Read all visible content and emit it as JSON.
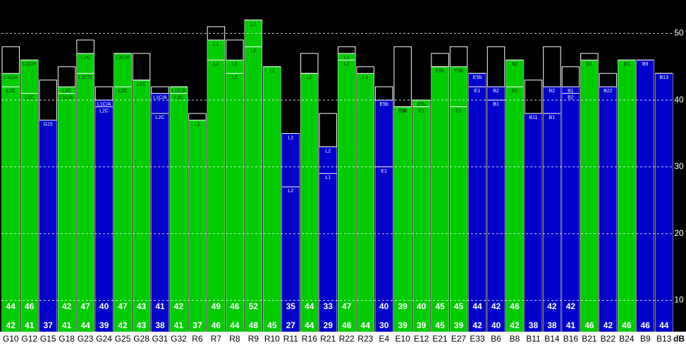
{
  "chart_data": {
    "type": "bar",
    "y_label": "dB",
    "ylim": [
      5.3,
      55
    ],
    "yticks": [
      10,
      20,
      30,
      40,
      50
    ],
    "grid": true,
    "categories": [
      "G10",
      "G12",
      "G15",
      "G18",
      "G23",
      "G24",
      "G25",
      "G28",
      "G31",
      "G32",
      "R6",
      "R7",
      "R8",
      "R9",
      "R10",
      "R11",
      "R16",
      "R21",
      "R22",
      "R23",
      "E4",
      "E10",
      "E12",
      "E21",
      "E27",
      "E33",
      "B6",
      "B8",
      "B11",
      "B14",
      "B16",
      "B21",
      "B22",
      "B24",
      "B9",
      "B13"
    ],
    "bars": [
      {
        "color": "#00cc00",
        "peak": 48,
        "signals": [
          {
            "label": "L1C/A",
            "value": 44
          },
          {
            "label": "L2C",
            "value": 42
          }
        ]
      },
      {
        "color": "#00cc00",
        "peak": 46,
        "signals": [
          {
            "label": "L1C/A",
            "value": 46
          },
          {
            "label": "L2C",
            "value": 41
          }
        ]
      },
      {
        "color": "#0000cc",
        "peak": 43,
        "signals": [
          {
            "label": "G15",
            "value": 37
          }
        ]
      },
      {
        "color": "#00cc00",
        "peak": 45,
        "signals": [
          {
            "label": "L2C",
            "value": 42
          },
          {
            "label": "L1C/A",
            "value": 41
          }
        ]
      },
      {
        "color": "#00cc00",
        "peak": 49,
        "signals": [
          {
            "label": "L2C",
            "value": 47
          },
          {
            "label": "L1C/A",
            "value": 44
          }
        ]
      },
      {
        "color": "#0000cc",
        "peak": 42,
        "signals": [
          {
            "label": "L1C/A",
            "value": 40
          },
          {
            "label": "L2C",
            "value": 39
          }
        ]
      },
      {
        "color": "#00cc00",
        "peak": 47,
        "signals": [
          {
            "label": "L1C/A",
            "value": 47
          },
          {
            "label": "L2C",
            "value": 42
          }
        ]
      },
      {
        "color": "#00cc00",
        "peak": 47,
        "signals": [
          {
            "label": "L2C",
            "value": 43
          },
          {
            "value": 43
          }
        ]
      },
      {
        "color": "#0000cc",
        "peak": 42,
        "signals": [
          {
            "label": "L1C/A",
            "value": 41
          },
          {
            "label": "L2C",
            "value": 38
          }
        ]
      },
      {
        "color": "#00cc00",
        "peak": 42,
        "signals": [
          {
            "label": "L1C/A",
            "value": 42
          },
          {
            "label": "L2C",
            "value": 41
          }
        ]
      },
      {
        "color": "#00cc00",
        "peak": 38,
        "signals": [
          {
            "label": "L1",
            "value": 37
          }
        ]
      },
      {
        "color": "#00cc00",
        "peak": 51,
        "signals": [
          {
            "label": "L1",
            "value": 49
          },
          {
            "label": "L2",
            "value": 46
          }
        ]
      },
      {
        "color": "#00cc00",
        "peak": 49,
        "signals": [
          {
            "label": "L1",
            "value": 46
          },
          {
            "label": "L2",
            "value": 44
          }
        ]
      },
      {
        "color": "#00cc00",
        "peak": 52,
        "signals": [
          {
            "label": "L1",
            "value": 52
          },
          {
            "label": "L2",
            "value": 48
          }
        ]
      },
      {
        "color": "#00cc00",
        "peak": 45,
        "signals": [
          {
            "label": "L1",
            "value": 45
          }
        ]
      },
      {
        "color": "#0000cc",
        "peak": 35,
        "signals": [
          {
            "label": "L1",
            "value": 35
          },
          {
            "label": "L2",
            "value": 27
          }
        ]
      },
      {
        "color": "#00cc00",
        "peak": 47,
        "signals": [
          {
            "label": "L2",
            "value": 44
          },
          {
            "value": 44
          }
        ]
      },
      {
        "color": "#0000cc",
        "peak": 38,
        "signals": [
          {
            "label": "L2",
            "value": 33
          },
          {
            "label": "L1",
            "value": 29
          }
        ]
      },
      {
        "color": "#00cc00",
        "peak": 48,
        "signals": [
          {
            "label": "L1",
            "value": 47
          },
          {
            "label": "L2",
            "value": 46
          }
        ]
      },
      {
        "color": "#00cc00",
        "peak": 45,
        "signals": [
          {
            "label": "L1",
            "value": 44
          }
        ]
      },
      {
        "color": "#0000cc",
        "peak": 42,
        "signals": [
          {
            "label": "E5b",
            "value": 40
          },
          {
            "label": "E1",
            "value": 30
          }
        ]
      },
      {
        "color": "#00cc00",
        "peak": 48,
        "signals": [
          {
            "label": "E5b",
            "value": 39
          },
          {
            "label": "E1",
            "value": 39
          }
        ]
      },
      {
        "color": "#00cc00",
        "peak": 40,
        "signals": [
          {
            "label": "E5b",
            "value": 40
          },
          {
            "label": "E1",
            "value": 39
          }
        ]
      },
      {
        "color": "#00cc00",
        "peak": 47,
        "signals": [
          {
            "label": "E5b",
            "value": 45
          },
          {
            "value": 45
          }
        ]
      },
      {
        "color": "#00cc00",
        "peak": 48,
        "signals": [
          {
            "label": "E5b",
            "value": 45
          },
          {
            "label": "E1",
            "value": 39
          }
        ]
      },
      {
        "color": "#0000cc",
        "peak": 44,
        "signals": [
          {
            "label": "E5b",
            "value": 44
          },
          {
            "label": "E1",
            "value": 42
          }
        ]
      },
      {
        "color": "#0000cc",
        "peak": 48,
        "signals": [
          {
            "label": "B2",
            "value": 42
          },
          {
            "label": "B1",
            "value": 40
          }
        ]
      },
      {
        "color": "#00cc00",
        "peak": 46,
        "signals": [
          {
            "label": "B2",
            "value": 46
          },
          {
            "label": "B1",
            "value": 42
          }
        ]
      },
      {
        "color": "#0000cc",
        "peak": 43,
        "signals": [
          {
            "label": "B11",
            "value": 38
          }
        ]
      },
      {
        "color": "#0000cc",
        "peak": 48,
        "signals": [
          {
            "label": "B2",
            "value": 42
          },
          {
            "label": "B1",
            "value": 38
          }
        ]
      },
      {
        "color": "#0000cc",
        "peak": 45,
        "signals": [
          {
            "label": "B1",
            "value": 42
          },
          {
            "label": "B2",
            "value": 41
          }
        ]
      },
      {
        "color": "#00cc00",
        "peak": 47,
        "signals": [
          {
            "label": "B1",
            "value": 46
          }
        ]
      },
      {
        "color": "#0000cc",
        "peak": 44,
        "signals": [
          {
            "label": "B22",
            "value": 42
          }
        ]
      },
      {
        "color": "#00cc00",
        "peak": 46,
        "signals": [
          {
            "label": "B1",
            "value": 46
          }
        ]
      },
      {
        "color": "#0000cc",
        "peak": 46,
        "signals": [
          {
            "label": "B9",
            "value": 46
          }
        ]
      },
      {
        "color": "#0000cc",
        "peak": 44,
        "signals": [
          {
            "label": "B13",
            "value": 44
          }
        ]
      }
    ]
  }
}
